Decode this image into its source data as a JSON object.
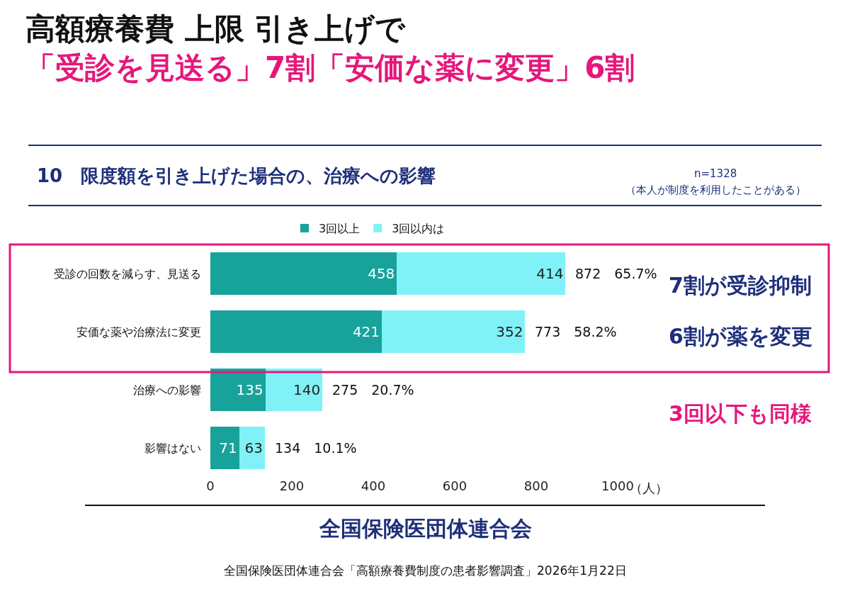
{
  "chart_data": {
    "type": "bar",
    "orientation": "horizontal",
    "stacked": true,
    "title": "高額療養費 上限 引き上げで",
    "subtitle": "「受診を見送る」7割「安価な薬に変更」6割",
    "categories": [
      "受診の回数を減らす、見送る",
      "安価な薬や治療法に変更",
      "治療への影響",
      "影響はない"
    ],
    "series": [
      {
        "name": "3回以上",
        "color": "#17a39b",
        "values": [
          458,
          421,
          135,
          71
        ]
      },
      {
        "name": "3回以内は",
        "color": "#80f2f7",
        "values": [
          414,
          352,
          140,
          63
        ]
      }
    ],
    "data_labels": true,
    "totals": [
      "872　65.7%",
      "773　58.2%",
      "275　20.7%",
      "134　10.1%"
    ],
    "xlim": [
      0,
      1000
    ],
    "xticks": [
      0,
      200,
      400,
      600,
      800,
      1000
    ],
    "xlabel": "（人）",
    "legend": "top",
    "annotations": [
      "10　限度額を引き上げた場合の、治療への影響",
      "n=1328",
      "（本人が制度を利用したことがある）",
      "7割が受診抑制",
      "6割が薬を変更",
      "3回以下も同様",
      "全国保険医団体連合会",
      "全国保険医団体連合会「高額療養費制度の患者影響調査」2026年1月22日"
    ]
  }
}
